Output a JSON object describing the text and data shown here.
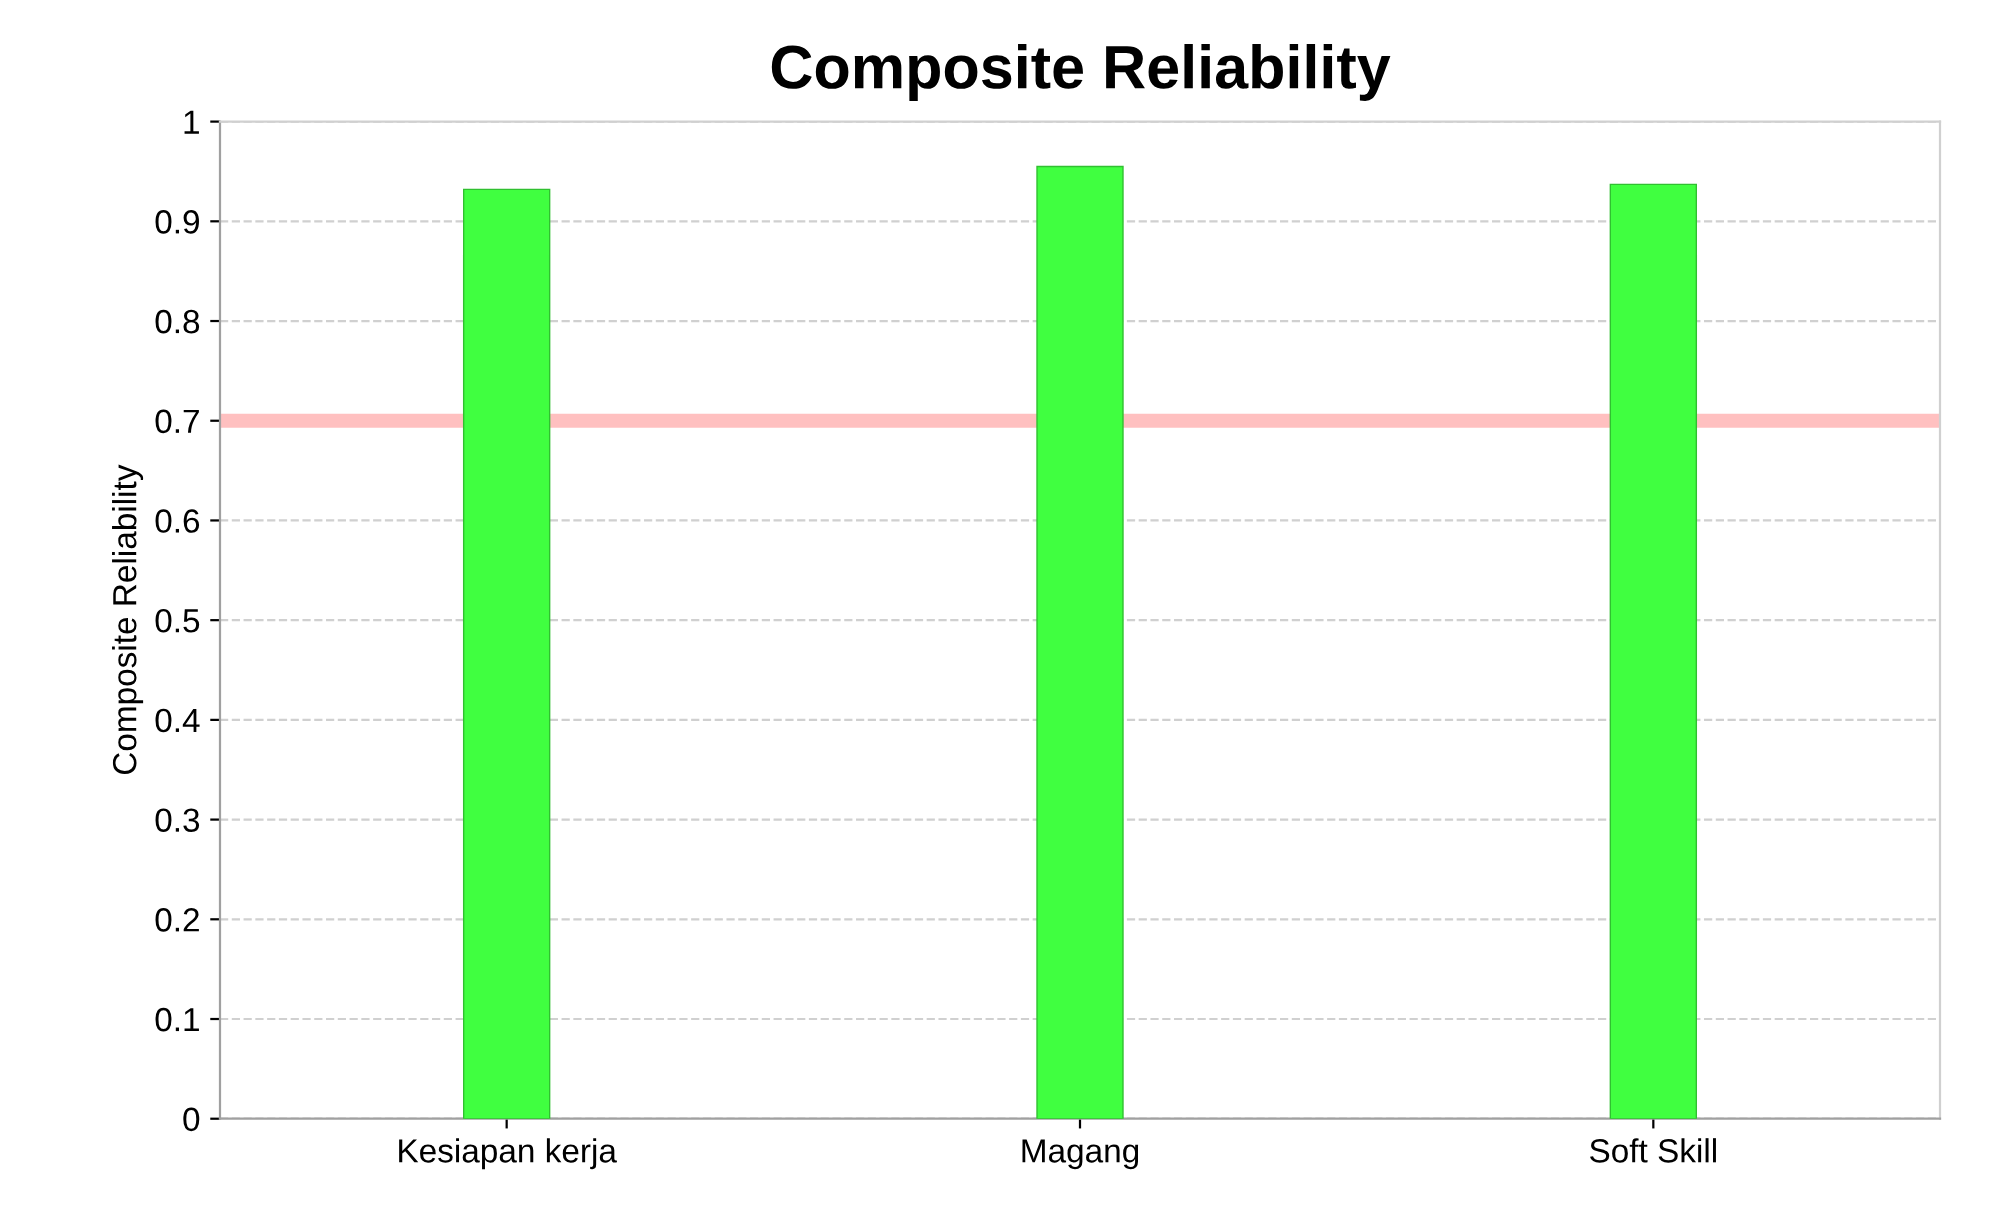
{
  "chart_data": {
    "type": "bar",
    "title": "Composite Reliability",
    "ylabel": "Composite Reliability",
    "categories": [
      "Kesiapan kerja",
      "Magang",
      "Soft Skill"
    ],
    "values": [
      0.932,
      0.955,
      0.937
    ],
    "color": "#40ff40",
    "ylim": [
      0,
      1
    ],
    "yticks": [
      0,
      0.1,
      0.2,
      0.3,
      0.4,
      0.5,
      0.6,
      0.7,
      0.8,
      0.9,
      1
    ],
    "grid": "y",
    "legend": false,
    "ref_lines": [
      {
        "axis": "y",
        "value": 0.7,
        "color": "#ffc0c0"
      }
    ]
  }
}
